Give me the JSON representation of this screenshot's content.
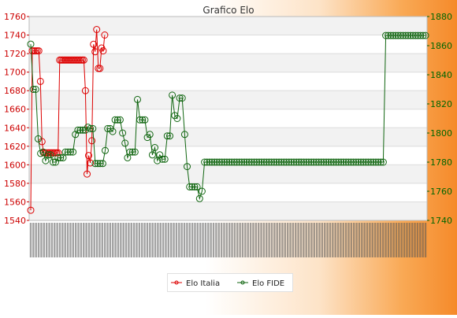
{
  "chart_data": {
    "type": "line",
    "title": "Grafico Elo",
    "legend_position": "bottom",
    "grid": true,
    "left_axis": {
      "ylim": [
        1540,
        1760
      ],
      "ticks": [
        1540,
        1560,
        1580,
        1600,
        1620,
        1640,
        1660,
        1680,
        1700,
        1720,
        1740,
        1760
      ],
      "color": "#cc0000"
    },
    "right_axis": {
      "ylim": [
        1740,
        1880
      ],
      "ticks": [
        1740,
        1760,
        1780,
        1800,
        1820,
        1840,
        1860,
        1880
      ],
      "color": "#006600"
    },
    "x_tick_labels": "unreadable dense date labels",
    "series": [
      {
        "name": "Elo Italia",
        "axis": "left",
        "color": "#dd0000",
        "values": [
          1551,
          1723,
          1723,
          1723,
          1723,
          1723,
          1690,
          1625,
          1613,
          1613,
          1613,
          1613,
          1613,
          1613,
          1613,
          1613,
          1613,
          1613,
          1713,
          1713,
          1713,
          1713,
          1713,
          1713,
          1713,
          1713,
          1713,
          1713,
          1713,
          1713,
          1713,
          1713,
          1713,
          1713,
          1680,
          1590,
          1610,
          1602,
          1626,
          1730,
          1722,
          1746,
          1704,
          1704,
          1726,
          1723,
          1740
        ]
      },
      {
        "name": "Elo FIDE",
        "axis": "right",
        "color": "#116611",
        "values": [
          1861,
          1830,
          1830,
          1796,
          1786,
          1787,
          1781,
          1785,
          1785,
          1780,
          1780,
          1783,
          1783,
          1783,
          1787,
          1787,
          1787,
          1787,
          1799,
          1802,
          1802,
          1802,
          1802,
          1804,
          1803,
          1803,
          1779,
          1779,
          1779,
          1779,
          1788,
          1803,
          1803,
          1801,
          1809,
          1809,
          1809,
          1800,
          1793,
          1783,
          1787,
          1787,
          1787,
          1823,
          1809,
          1809,
          1809,
          1797,
          1799,
          1785,
          1790,
          1781,
          1785,
          1782,
          1782,
          1798,
          1798,
          1826,
          1812,
          1810,
          1824,
          1824,
          1799,
          1777,
          1763,
          1763,
          1763,
          1763,
          1755,
          1760,
          1780,
          1780,
          1780,
          1780,
          1780,
          1780,
          1780,
          1780,
          1780,
          1780,
          1780,
          1780,
          1780,
          1780,
          1780,
          1780,
          1780,
          1780,
          1780,
          1780,
          1780,
          1780,
          1780,
          1780,
          1780,
          1780,
          1780,
          1780,
          1780,
          1780,
          1780,
          1780,
          1780,
          1780,
          1780,
          1780,
          1780,
          1780,
          1780,
          1780,
          1780,
          1780,
          1780,
          1780,
          1780,
          1780,
          1780,
          1780,
          1780,
          1780,
          1780,
          1780,
          1780,
          1780,
          1780,
          1780,
          1780,
          1780,
          1780,
          1780,
          1780,
          1780,
          1780,
          1780,
          1780,
          1780,
          1780,
          1780,
          1780,
          1780,
          1780,
          1780,
          1780,
          1867,
          1867,
          1867,
          1867,
          1867,
          1867,
          1867,
          1867,
          1867,
          1867,
          1867,
          1867,
          1867,
          1867,
          1867,
          1867,
          1867
        ]
      }
    ]
  }
}
